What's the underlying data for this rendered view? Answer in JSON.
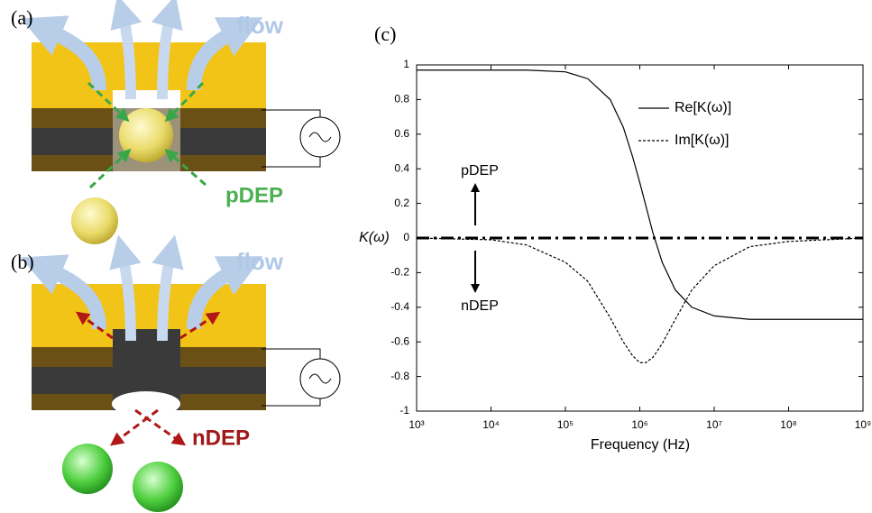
{
  "panel_labels": [
    "(a)",
    "(b)",
    "(c)"
  ],
  "diagram_a": {
    "flow_label": "flow",
    "force_label": "pDEP"
  },
  "diagram_b": {
    "flow_label": "flow",
    "force_label": "nDEP"
  },
  "chart_data": {
    "type": "line",
    "xlabel": "Frequency (Hz)",
    "ylabel": "K(ω)",
    "xscale": "log",
    "grid": false,
    "legend": "upper right",
    "x": [
      1000,
      10000,
      30000,
      100000,
      200000,
      400000,
      600000,
      800000,
      1000000,
      1200000,
      1500000,
      2000000,
      3000000,
      5000000,
      10000000,
      30000000,
      100000000,
      1000000000
    ],
    "series": [
      {
        "name": "Re[K(ω)]",
        "color": "#000000",
        "linestyle": "solid",
        "values": [
          0.97,
          0.97,
          0.97,
          0.96,
          0.92,
          0.8,
          0.64,
          0.47,
          0.32,
          0.19,
          0.03,
          -0.14,
          -0.3,
          -0.4,
          -0.45,
          -0.47,
          -0.47,
          -0.47
        ]
      },
      {
        "name": "Im[K(ω)]",
        "color": "#000000",
        "linestyle": "dashed",
        "values": [
          0.0,
          -0.01,
          -0.04,
          -0.14,
          -0.25,
          -0.46,
          -0.6,
          -0.68,
          -0.72,
          -0.72,
          -0.69,
          -0.61,
          -0.47,
          -0.3,
          -0.16,
          -0.05,
          -0.02,
          0.0
        ]
      }
    ],
    "hline": 0,
    "annotations": [
      "pDEP",
      "nDEP"
    ],
    "xlim": [
      1000,
      1000000000
    ],
    "xticks": [
      {
        "value": 1000,
        "label": "10³"
      },
      {
        "value": 10000,
        "label": "10⁴"
      },
      {
        "value": 100000,
        "label": "10⁵"
      },
      {
        "value": 1000000,
        "label": "10⁶"
      },
      {
        "value": 10000000,
        "label": "10⁷"
      },
      {
        "value": 100000000,
        "label": "10⁸"
      },
      {
        "value": 1000000000,
        "label": "10⁹"
      }
    ],
    "ylim": [
      -1,
      1
    ],
    "yticks": [
      -1,
      -0.8,
      -0.6,
      -0.4,
      -0.2,
      0,
      0.2,
      0.4,
      0.6,
      0.8,
      1
    ]
  }
}
